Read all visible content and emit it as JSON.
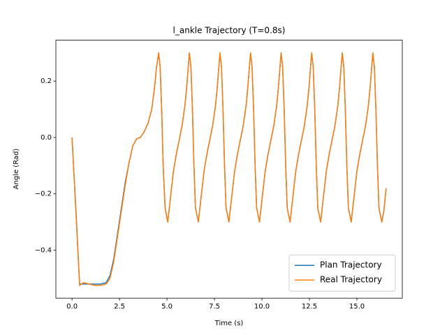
{
  "chart_data": {
    "type": "line",
    "title": "l_ankle Trajectory (T=0.8s)",
    "xlabel": "Time (s)",
    "ylabel": "Angle (Rad)",
    "x": [
      0,
      0.2,
      0.4,
      0.6,
      0.9,
      1.2,
      1.5,
      1.8,
      2.0,
      2.2,
      2.4,
      2.6,
      2.8,
      3.0,
      3.2,
      3.4,
      3.6,
      3.8,
      4.0,
      4.2,
      4.35,
      4.45,
      4.56,
      4.64,
      4.72,
      4.8,
      4.9,
      5.04,
      5.19,
      5.34,
      5.49,
      5.64,
      5.79,
      5.94,
      6.04,
      6.12,
      6.18,
      6.26,
      6.34,
      6.42,
      6.5,
      6.65,
      6.8,
      6.95,
      7.1,
      7.25,
      7.4,
      7.55,
      7.65,
      7.73,
      7.79,
      7.87,
      7.95,
      8.03,
      8.11,
      8.26,
      8.41,
      8.56,
      8.71,
      8.86,
      9.01,
      9.16,
      9.26,
      9.34,
      9.4,
      9.48,
      9.56,
      9.64,
      9.72,
      9.87,
      10.02,
      10.17,
      10.32,
      10.47,
      10.62,
      10.77,
      10.87,
      10.95,
      11.01,
      11.09,
      11.17,
      11.25,
      11.33,
      11.48,
      11.63,
      11.78,
      11.93,
      12.08,
      12.23,
      12.38,
      12.48,
      12.56,
      12.62,
      12.7,
      12.78,
      12.86,
      12.94,
      13.09,
      13.24,
      13.39,
      13.54,
      13.69,
      13.84,
      13.99,
      14.09,
      14.17,
      14.23,
      14.31,
      14.39,
      14.47,
      14.55,
      14.7,
      14.85,
      15.0,
      15.15,
      15.3,
      15.45,
      15.6,
      15.7,
      15.78,
      15.84,
      15.92,
      16.0,
      16.08,
      16.16,
      16.31,
      16.42,
      16.54
    ],
    "series": [
      {
        "name": "Plan Trajectory",
        "color": "#1f77b4",
        "values": [
          0,
          -0.25,
          -0.52,
          -0.52,
          -0.52,
          -0.52,
          -0.52,
          -0.515,
          -0.49,
          -0.43,
          -0.34,
          -0.25,
          -0.16,
          -0.09,
          -0.03,
          -0.005,
          0.0,
          0.02,
          0.05,
          0.1,
          0.18,
          0.25,
          0.3,
          0.25,
          0.1,
          -0.1,
          -0.25,
          -0.3,
          -0.21,
          -0.12,
          -0.06,
          -0.01,
          0.04,
          0.11,
          0.18,
          0.25,
          0.3,
          0.25,
          0.1,
          -0.1,
          -0.25,
          -0.3,
          -0.21,
          -0.12,
          -0.06,
          -0.01,
          0.04,
          0.11,
          0.18,
          0.25,
          0.3,
          0.25,
          0.1,
          -0.1,
          -0.25,
          -0.3,
          -0.21,
          -0.12,
          -0.06,
          -0.01,
          0.04,
          0.11,
          0.18,
          0.25,
          0.3,
          0.25,
          0.1,
          -0.1,
          -0.25,
          -0.3,
          -0.21,
          -0.12,
          -0.06,
          -0.01,
          0.04,
          0.11,
          0.18,
          0.25,
          0.3,
          0.25,
          0.1,
          -0.1,
          -0.25,
          -0.3,
          -0.21,
          -0.12,
          -0.06,
          -0.01,
          0.04,
          0.11,
          0.18,
          0.25,
          0.3,
          0.25,
          0.1,
          -0.1,
          -0.25,
          -0.3,
          -0.21,
          -0.12,
          -0.06,
          -0.01,
          0.04,
          0.11,
          0.18,
          0.25,
          0.3,
          0.25,
          0.1,
          -0.1,
          -0.25,
          -0.3,
          -0.21,
          -0.12,
          -0.06,
          -0.01,
          0.04,
          0.11,
          0.18,
          0.25,
          0.3,
          0.25,
          0.1,
          -0.1,
          -0.25,
          -0.3,
          -0.26,
          -0.18
        ]
      },
      {
        "name": "Real Trajectory",
        "color": "#ff7f0e",
        "values": [
          0,
          -0.26,
          -0.525,
          -0.515,
          -0.52,
          -0.525,
          -0.525,
          -0.52,
          -0.5,
          -0.44,
          -0.35,
          -0.26,
          -0.17,
          -0.09,
          -0.03,
          -0.005,
          0.0,
          0.02,
          0.05,
          0.1,
          0.18,
          0.25,
          0.3,
          0.25,
          0.1,
          -0.1,
          -0.25,
          -0.3,
          -0.21,
          -0.12,
          -0.06,
          -0.01,
          0.04,
          0.11,
          0.18,
          0.25,
          0.3,
          0.25,
          0.1,
          -0.1,
          -0.25,
          -0.3,
          -0.21,
          -0.12,
          -0.06,
          -0.01,
          0.04,
          0.11,
          0.18,
          0.25,
          0.3,
          0.25,
          0.1,
          -0.1,
          -0.25,
          -0.3,
          -0.21,
          -0.12,
          -0.06,
          -0.01,
          0.04,
          0.11,
          0.18,
          0.25,
          0.3,
          0.25,
          0.1,
          -0.1,
          -0.25,
          -0.3,
          -0.21,
          -0.12,
          -0.06,
          -0.01,
          0.04,
          0.11,
          0.18,
          0.25,
          0.3,
          0.25,
          0.1,
          -0.1,
          -0.25,
          -0.3,
          -0.21,
          -0.12,
          -0.06,
          -0.01,
          0.04,
          0.11,
          0.18,
          0.25,
          0.3,
          0.25,
          0.1,
          -0.1,
          -0.25,
          -0.3,
          -0.21,
          -0.12,
          -0.06,
          -0.01,
          0.04,
          0.11,
          0.18,
          0.25,
          0.3,
          0.25,
          0.1,
          -0.1,
          -0.25,
          -0.3,
          -0.21,
          -0.12,
          -0.06,
          -0.01,
          0.04,
          0.11,
          0.18,
          0.25,
          0.3,
          0.25,
          0.1,
          -0.1,
          -0.25,
          -0.3,
          -0.26,
          -0.18
        ]
      }
    ],
    "xlim": [
      -0.85,
      17.39
    ],
    "ylim": [
      -0.57,
      0.345
    ],
    "xticks": [
      {
        "value": 0,
        "label": "0.0"
      },
      2.5,
      {
        "value": 5,
        "label": "5.0"
      },
      7.5,
      {
        "value": 10,
        "label": "10.0"
      },
      12.5,
      {
        "value": 15,
        "label": "15.0"
      }
    ],
    "yticks": [
      {
        "value": -0.4,
        "label": "−0.4"
      },
      {
        "value": -0.2,
        "label": "−0.2"
      },
      {
        "value": 0,
        "label": "0.0"
      },
      0.2
    ],
    "grid": false,
    "legend": "lower right"
  }
}
